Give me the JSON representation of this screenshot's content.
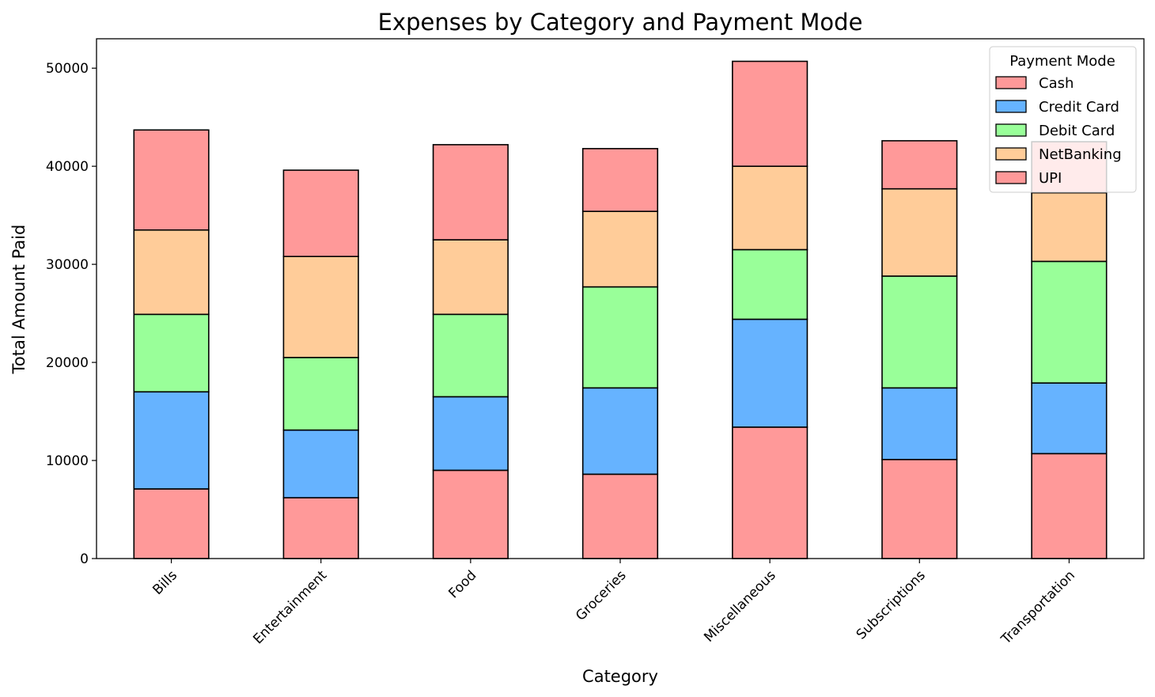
{
  "chart_data": {
    "type": "bar",
    "stacked": true,
    "title": "Expenses by Category and Payment Mode",
    "xlabel": "Category",
    "ylabel": "Total Amount Paid",
    "ylim": [
      0,
      53000
    ],
    "yticks": [
      0,
      10000,
      20000,
      30000,
      40000,
      50000
    ],
    "grid": false,
    "legend": {
      "title": "Payment Mode",
      "position": "top-right"
    },
    "categories": [
      "Bills",
      "Entertainment",
      "Food",
      "Groceries",
      "Miscellaneous",
      "Subscriptions",
      "Transportation"
    ],
    "series": [
      {
        "name": "Cash",
        "color": "#ff9999",
        "values": [
          7100,
          6200,
          9000,
          8600,
          13400,
          10100,
          10700
        ]
      },
      {
        "name": "Credit Card",
        "color": "#66b3ff",
        "values": [
          9900,
          6900,
          7500,
          8800,
          11000,
          7300,
          7200
        ]
      },
      {
        "name": "Debit Card",
        "color": "#99ff99",
        "values": [
          7900,
          7400,
          8400,
          10300,
          7100,
          11400,
          12400
        ]
      },
      {
        "name": "NetBanking",
        "color": "#ffcc99",
        "values": [
          8600,
          10300,
          7600,
          7700,
          8500,
          8900,
          7000
        ]
      },
      {
        "name": "UPI",
        "color": "#ff9999",
        "values": [
          10200,
          8800,
          9700,
          6400,
          10700,
          4900,
          5200
        ]
      }
    ]
  }
}
